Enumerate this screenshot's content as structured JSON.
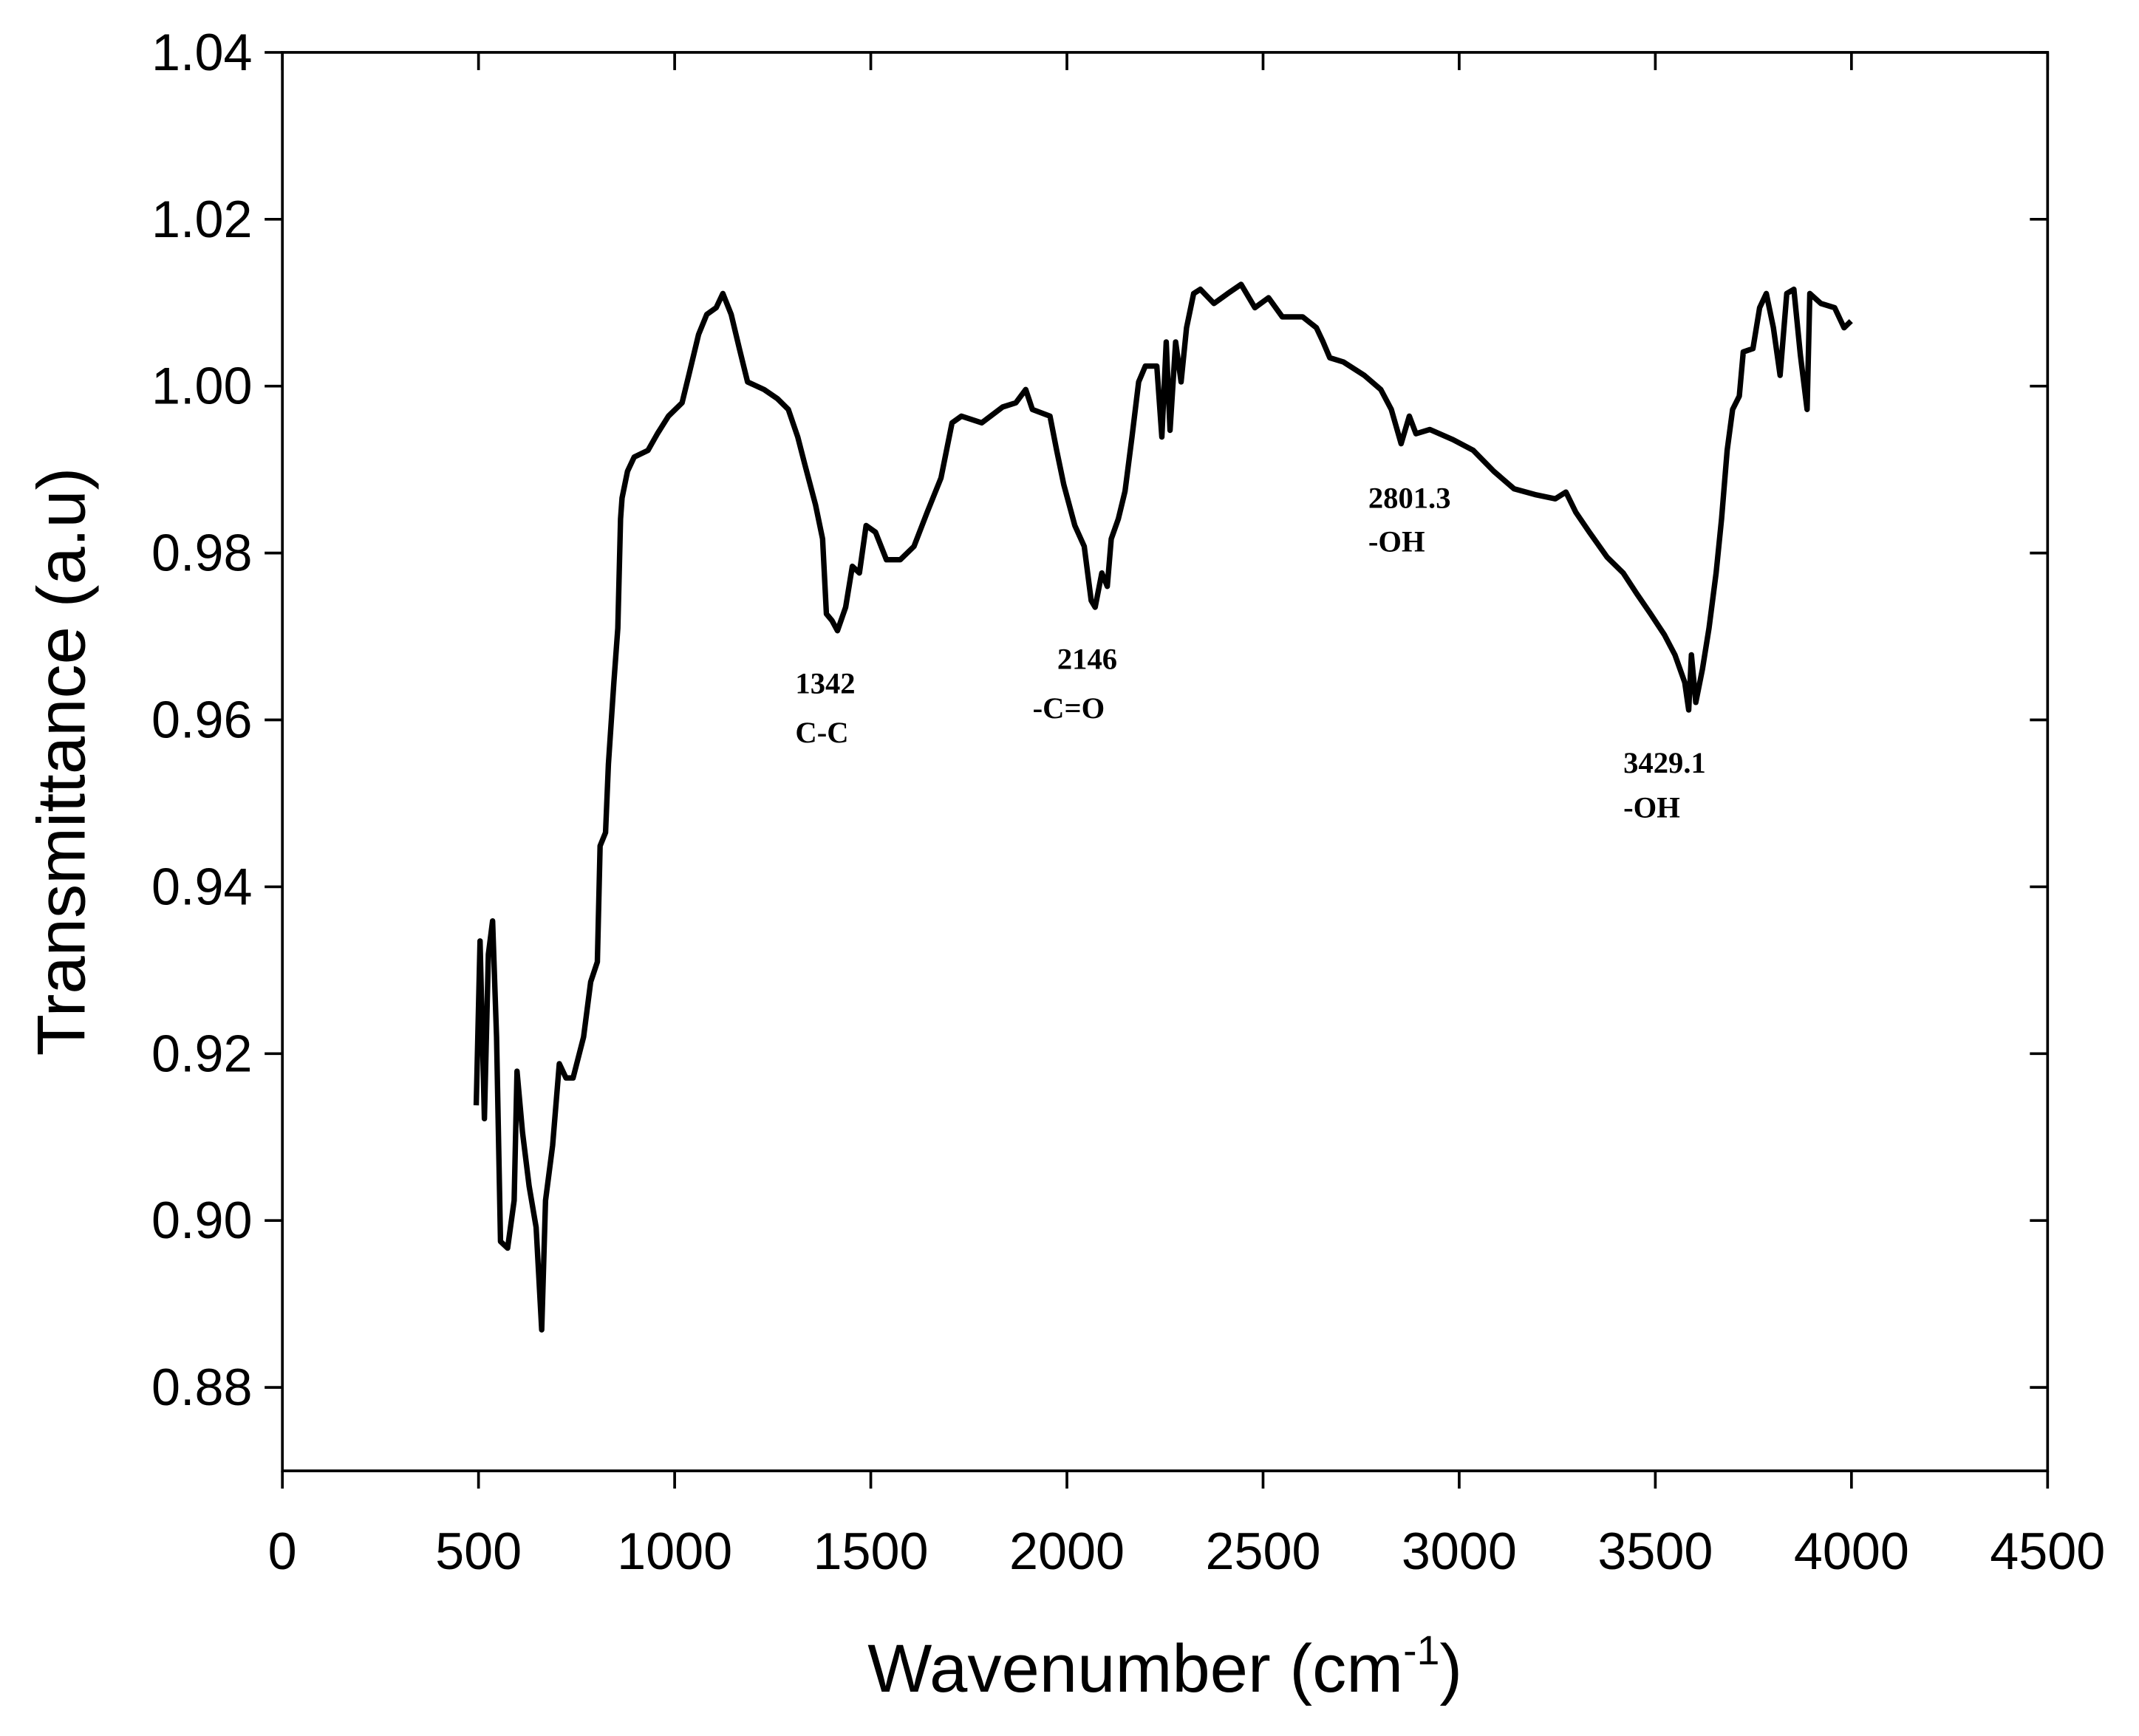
{
  "chart_data": {
    "type": "line",
    "ylabel": "Transmittance (a.u)",
    "xlabel": {
      "text": "Wavenumber (cm",
      "superscript": "-1",
      "suffix": ")"
    },
    "color": "#000000",
    "xlim": [
      0,
      4500
    ],
    "xticks": [
      0,
      500,
      1000,
      1500,
      2000,
      2500,
      3000,
      3500,
      4000,
      4500
    ],
    "ylim": [
      0.87,
      1.04
    ],
    "yticks": [
      0.88,
      {
        "value": 0.9,
        "label": "0.90"
      },
      0.92,
      0.94,
      0.96,
      0.98,
      {
        "value": 1,
        "label": "1.00"
      },
      1.02,
      1.04
    ],
    "annotations": [
      {
        "lines": [
          "1342",
          "C-C"
        ]
      },
      {
        "lines": [
          "2146",
          "-C=O"
        ]
      },
      {
        "lines": [
          "2801.3",
          "-OH"
        ]
      },
      {
        "lines": [
          "3429.1",
          "-OH"
        ]
      }
    ],
    "x": [
      494,
      504,
      515,
      525,
      536,
      546,
      556,
      574,
      591,
      598,
      612,
      629,
      647,
      661,
      671,
      689,
      706,
      723,
      741,
      768,
      786,
      803,
      810,
      824,
      831,
      845,
      855,
      862,
      866,
      880,
      897,
      932,
      956,
      984,
      1019,
      1036,
      1061,
      1082,
      1106,
      1123,
      1144,
      1165,
      1186,
      1228,
      1262,
      1290,
      1314,
      1332,
      1359,
      1377,
      1387,
      1401,
      1415,
      1436,
      1453,
      1471,
      1488,
      1512,
      1540,
      1575,
      1610,
      1644,
      1679,
      1707,
      1731,
      1783,
      1836,
      1870,
      1895,
      1912,
      1957,
      1974,
      1992,
      2020,
      2044,
      2062,
      2072,
      2089,
      2103,
      2113,
      2131,
      2148,
      2166,
      2183,
      2200,
      2229,
      2242,
      2253,
      2263,
      2277,
      2291,
      2305,
      2323,
      2340,
      2375,
      2410,
      2444,
      2479,
      2514,
      2549,
      2601,
      2636,
      2653,
      2670,
      2705,
      2758,
      2800,
      2827,
      2852,
      2873,
      2890,
      2925,
      2984,
      3036,
      3088,
      3140,
      3193,
      3245,
      3272,
      3297,
      3332,
      3377,
      3418,
      3453,
      3488,
      3523,
      3550,
      3575,
      3585,
      3592,
      3603,
      3620,
      3637,
      3655,
      3669,
      3683,
      3697,
      3714,
      3724,
      3749,
      3766,
      3783,
      3801,
      3818,
      3835,
      3853,
      3870,
      3887,
      3894,
      3922,
      3957,
      3981,
      3999
    ],
    "values": [
      0.9138,
      0.9335,
      0.9122,
      0.9319,
      0.9359,
      0.922,
      0.8975,
      0.8967,
      0.9024,
      0.9179,
      0.9106,
      0.9041,
      0.8992,
      0.8869,
      0.9024,
      0.909,
      0.9188,
      0.9171,
      0.9171,
      0.922,
      0.9286,
      0.931,
      0.9449,
      0.9465,
      0.9547,
      0.9645,
      0.971,
      0.9841,
      0.9866,
      0.9898,
      0.9915,
      0.9923,
      0.9943,
      0.9964,
      0.998,
      1.0013,
      1.0062,
      1.0086,
      1.0094,
      1.0111,
      1.0086,
      1.0045,
      1.0005,
      0.9996,
      0.9985,
      0.9972,
      0.9939,
      0.9906,
      0.9858,
      0.9817,
      0.9727,
      0.9719,
      0.9707,
      0.9735,
      0.9784,
      0.9776,
      0.9833,
      0.9825,
      0.9792,
      0.9792,
      0.9808,
      0.9849,
      0.989,
      0.9956,
      0.9964,
      0.9956,
      0.9975,
      0.998,
      0.9996,
      0.9972,
      0.9964,
      0.9923,
      0.9882,
      0.9833,
      0.9808,
      0.9743,
      0.9735,
      0.9776,
      0.976,
      0.9817,
      0.9841,
      0.9874,
      0.9939,
      1.0005,
      1.0024,
      1.0024,
      0.9939,
      1.0053,
      0.9947,
      1.0053,
      1.0005,
      1.007,
      1.0111,
      1.0116,
      1.0099,
      1.0111,
      1.0122,
      1.0094,
      1.0106,
      1.0083,
      1.0083,
      1.007,
      1.0053,
      1.0034,
      1.0029,
      1.0013,
      0.9996,
      0.9972,
      0.9931,
      0.9964,
      0.9943,
      0.9948,
      0.9936,
      0.9923,
      0.9898,
      0.9877,
      0.987,
      0.9865,
      0.9873,
      0.9849,
      0.9825,
      0.9795,
      0.9776,
      0.9751,
      0.9727,
      0.9702,
      0.9678,
      0.9645,
      0.9612,
      0.9678,
      0.9621,
      0.9661,
      0.971,
      0.9776,
      0.9841,
      0.9923,
      0.9972,
      0.9988,
      1.0041,
      1.0045,
      1.0094,
      1.0111,
      1.007,
      1.0013,
      1.0111,
      1.0116,
      1.0037,
      0.9972,
      1.0111,
      1.0099,
      1.0094,
      1.007,
      1.0078
    ]
  }
}
